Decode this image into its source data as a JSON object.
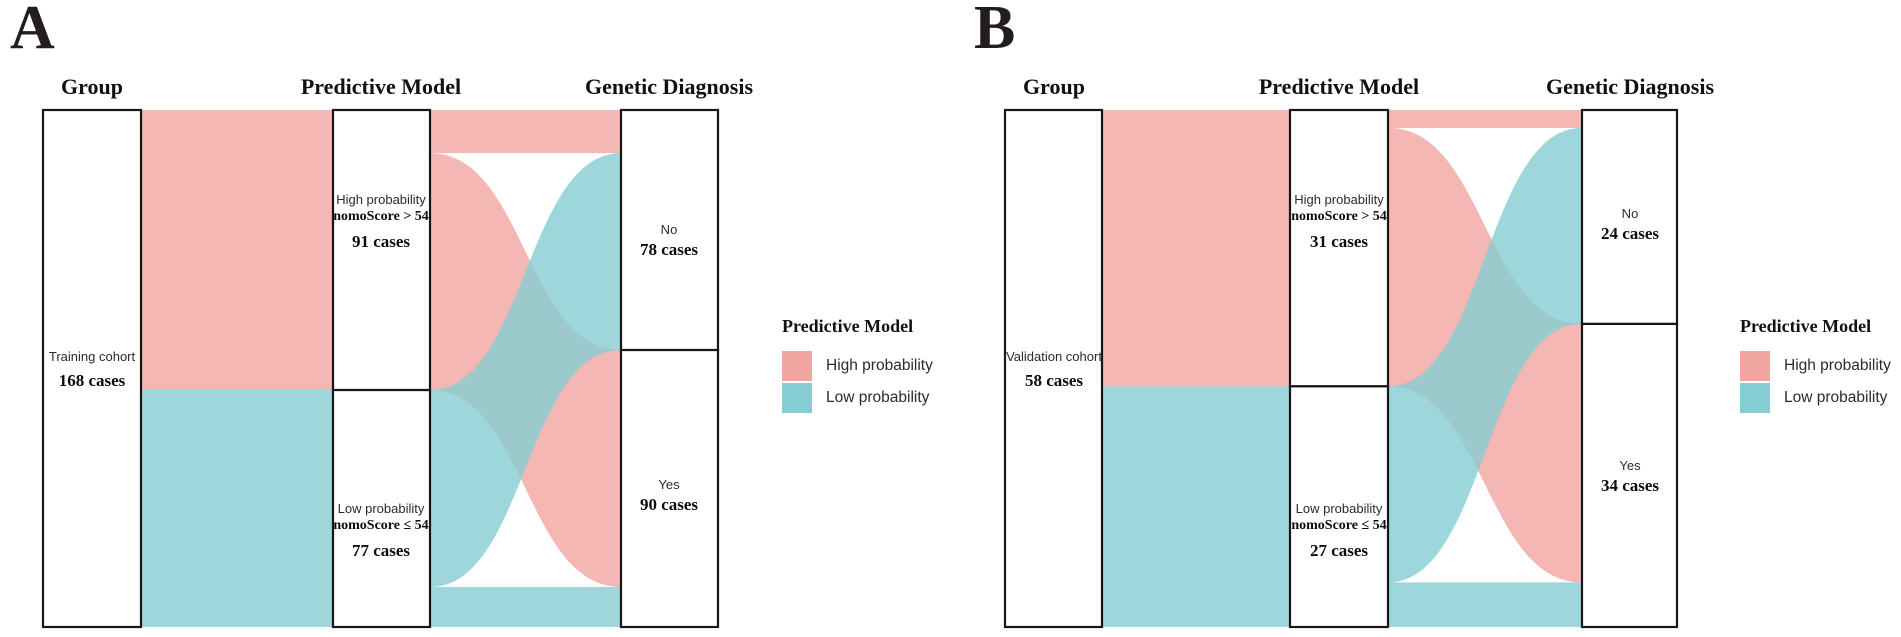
{
  "colors": {
    "high_probability": "#F1A5A0",
    "low_probability": "#85CDD2",
    "box_border": "#161616",
    "box_fill": "#FFFFFF"
  },
  "chart_data": [
    {
      "type": "alluvial",
      "panel": "A",
      "axis_titles": [
        "Group",
        "Predictive Model",
        "Genetic Diagnosis"
      ],
      "group": {
        "label": "Training cohort",
        "cases": "168 cases",
        "n": 168
      },
      "model": {
        "high": {
          "label": "High probability",
          "rule": "nomoScore > 54",
          "cases": "91 cases",
          "n": 91
        },
        "low": {
          "label": "Low probability",
          "rule": "nomoScore ≤ 54",
          "cases": "77 cases",
          "n": 77
        }
      },
      "diagnosis": {
        "no": {
          "label": "No",
          "cases": "78 cases",
          "n": 78
        },
        "yes": {
          "label": "Yes",
          "cases": "90 cases",
          "n": 90
        }
      },
      "links": [
        {
          "source": "high",
          "target": "no",
          "value": 14
        },
        {
          "source": "high",
          "target": "yes",
          "value": 77
        },
        {
          "source": "low",
          "target": "no",
          "value": 64
        },
        {
          "source": "low",
          "target": "yes",
          "value": 13
        }
      ],
      "legend": {
        "title": "Predictive Model",
        "items": [
          {
            "label": "High probability",
            "color": "#F1A5A0"
          },
          {
            "label": "Low probability",
            "color": "#85CDD2"
          }
        ]
      }
    },
    {
      "type": "alluvial",
      "panel": "B",
      "axis_titles": [
        "Group",
        "Predictive Model",
        "Genetic Diagnosis"
      ],
      "group": {
        "label": "Validation cohort",
        "cases": "58 cases",
        "n": 58
      },
      "model": {
        "high": {
          "label": "High probability",
          "rule": "nomoScore > 54",
          "cases": "31 cases",
          "n": 31
        },
        "low": {
          "label": "Low probability",
          "rule": "nomoScore ≤ 54",
          "cases": "27 cases",
          "n": 27
        }
      },
      "diagnosis": {
        "no": {
          "label": "No",
          "cases": "24 cases",
          "n": 24
        },
        "yes": {
          "label": "Yes",
          "cases": "34 cases",
          "n": 34
        }
      },
      "links": [
        {
          "source": "high",
          "target": "no",
          "value": 2
        },
        {
          "source": "high",
          "target": "yes",
          "value": 29
        },
        {
          "source": "low",
          "target": "no",
          "value": 22
        },
        {
          "source": "low",
          "target": "yes",
          "value": 5
        }
      ],
      "legend": {
        "title": "Predictive Model",
        "items": [
          {
            "label": "High probability",
            "color": "#F1A5A0"
          },
          {
            "label": "Low probability",
            "color": "#85CDD2"
          }
        ]
      }
    }
  ]
}
